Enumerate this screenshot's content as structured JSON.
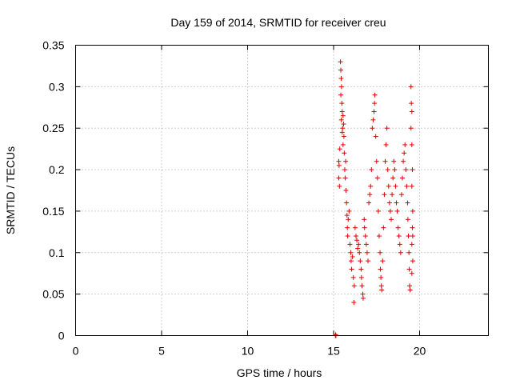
{
  "chart_data": {
    "type": "scatter",
    "title": "Day 159 of 2014, SRMTID for receiver creu",
    "xlabel": "GPS time / hours",
    "ylabel": "SRMTID / TECUs",
    "xlim": [
      0,
      24
    ],
    "ylim": [
      0,
      0.35
    ],
    "x_ticks": [
      0,
      5,
      10,
      15,
      20
    ],
    "x_tick_labels": [
      "0",
      "5",
      "10",
      "15",
      "20"
    ],
    "y_ticks": [
      0,
      0.05,
      0.1,
      0.15,
      0.2,
      0.25,
      0.3,
      0.35
    ],
    "y_tick_labels": [
      "0",
      "0.05",
      "0.1",
      "0.15",
      "0.2",
      "0.25",
      "0.3",
      "0.35"
    ],
    "grid": true,
    "marker": "plus",
    "series": [
      {
        "color": "#e00000",
        "points": [
          [
            15.1,
            0.0
          ],
          [
            15.12,
            0.001
          ],
          [
            15.14,
            0.0
          ],
          [
            15.3,
            0.19
          ],
          [
            15.3,
            0.21
          ],
          [
            15.32,
            0.205
          ],
          [
            15.34,
            0.18
          ],
          [
            15.36,
            0.225
          ],
          [
            15.4,
            0.33
          ],
          [
            15.42,
            0.32
          ],
          [
            15.44,
            0.31
          ],
          [
            15.42,
            0.29
          ],
          [
            15.46,
            0.3
          ],
          [
            15.48,
            0.28
          ],
          [
            15.5,
            0.27
          ],
          [
            15.45,
            0.26
          ],
          [
            15.52,
            0.25
          ],
          [
            15.55,
            0.265
          ],
          [
            15.5,
            0.245
          ],
          [
            15.58,
            0.255
          ],
          [
            15.6,
            0.24
          ],
          [
            15.55,
            0.23
          ],
          [
            15.62,
            0.22
          ],
          [
            15.65,
            0.2
          ],
          [
            15.7,
            0.21
          ],
          [
            15.68,
            0.19
          ],
          [
            15.72,
            0.175
          ],
          [
            15.75,
            0.16
          ],
          [
            15.78,
            0.145
          ],
          [
            15.8,
            0.13
          ],
          [
            15.82,
            0.12
          ],
          [
            15.85,
            0.14
          ],
          [
            15.9,
            0.15
          ],
          [
            15.95,
            0.11
          ],
          [
            16.0,
            0.1
          ],
          [
            16.02,
            0.09
          ],
          [
            16.05,
            0.08
          ],
          [
            16.1,
            0.095
          ],
          [
            16.15,
            0.07
          ],
          [
            16.2,
            0.06
          ],
          [
            16.18,
            0.04
          ],
          [
            16.25,
            0.13
          ],
          [
            16.3,
            0.12
          ],
          [
            16.35,
            0.115
          ],
          [
            16.4,
            0.105
          ],
          [
            16.45,
            0.11
          ],
          [
            16.5,
            0.1
          ],
          [
            16.55,
            0.09
          ],
          [
            16.6,
            0.08
          ],
          [
            16.62,
            0.07
          ],
          [
            16.65,
            0.06
          ],
          [
            16.7,
            0.05
          ],
          [
            16.72,
            0.045
          ],
          [
            16.78,
            0.14
          ],
          [
            16.8,
            0.13
          ],
          [
            16.85,
            0.12
          ],
          [
            16.9,
            0.11
          ],
          [
            16.95,
            0.1
          ],
          [
            17.0,
            0.09
          ],
          [
            17.05,
            0.16
          ],
          [
            17.1,
            0.17
          ],
          [
            17.15,
            0.18
          ],
          [
            17.2,
            0.2
          ],
          [
            17.25,
            0.25
          ],
          [
            17.3,
            0.26
          ],
          [
            17.35,
            0.27
          ],
          [
            17.38,
            0.28
          ],
          [
            17.4,
            0.29
          ],
          [
            17.45,
            0.24
          ],
          [
            17.5,
            0.21
          ],
          [
            17.55,
            0.19
          ],
          [
            17.6,
            0.15
          ],
          [
            17.65,
            0.12
          ],
          [
            17.7,
            0.1
          ],
          [
            17.72,
            0.08
          ],
          [
            17.75,
            0.07
          ],
          [
            17.78,
            0.06
          ],
          [
            17.8,
            0.055
          ],
          [
            17.85,
            0.09
          ],
          [
            17.9,
            0.13
          ],
          [
            17.95,
            0.17
          ],
          [
            18.0,
            0.21
          ],
          [
            18.05,
            0.23
          ],
          [
            18.1,
            0.25
          ],
          [
            18.15,
            0.2
          ],
          [
            18.2,
            0.18
          ],
          [
            18.25,
            0.16
          ],
          [
            18.3,
            0.15
          ],
          [
            18.35,
            0.14
          ],
          [
            18.4,
            0.17
          ],
          [
            18.45,
            0.19
          ],
          [
            18.5,
            0.21
          ],
          [
            18.55,
            0.2
          ],
          [
            18.6,
            0.18
          ],
          [
            18.65,
            0.16
          ],
          [
            18.7,
            0.15
          ],
          [
            18.75,
            0.13
          ],
          [
            18.8,
            0.12
          ],
          [
            18.85,
            0.11
          ],
          [
            18.9,
            0.1
          ],
          [
            18.95,
            0.17
          ],
          [
            19.0,
            0.19
          ],
          [
            19.05,
            0.21
          ],
          [
            19.1,
            0.22
          ],
          [
            19.15,
            0.23
          ],
          [
            19.2,
            0.2
          ],
          [
            19.25,
            0.18
          ],
          [
            19.3,
            0.16
          ],
          [
            19.32,
            0.14
          ],
          [
            19.35,
            0.12
          ],
          [
            19.38,
            0.1
          ],
          [
            19.4,
            0.08
          ],
          [
            19.42,
            0.06
          ],
          [
            19.45,
            0.055
          ],
          [
            19.5,
            0.3
          ],
          [
            19.52,
            0.28
          ],
          [
            19.55,
            0.27
          ],
          [
            19.5,
            0.25
          ],
          [
            19.55,
            0.23
          ],
          [
            19.58,
            0.2
          ],
          [
            19.55,
            0.18
          ],
          [
            19.6,
            0.15
          ],
          [
            19.58,
            0.13
          ],
          [
            19.6,
            0.12
          ],
          [
            19.55,
            0.11
          ],
          [
            19.6,
            0.09
          ],
          [
            19.55,
            0.075
          ]
        ]
      }
    ]
  }
}
